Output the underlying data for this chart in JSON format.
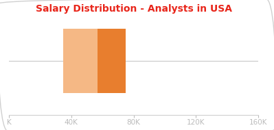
{
  "title": "Salary Distribution - Analysts in USA",
  "title_color": "#e8251a",
  "title_fontsize": 10,
  "title_fontweight": "bold",
  "xlim": [
    0,
    160000
  ],
  "xticks": [
    0,
    40000,
    80000,
    120000,
    160000
  ],
  "xticklabels": [
    "K",
    "40K",
    "80K",
    "120K",
    "160K"
  ],
  "q1": 35000,
  "median": 57000,
  "q3": 75000,
  "color_left": "#f5b885",
  "color_right": "#e87e2e",
  "whisker_color": "#cccccc",
  "background_color": "#ffffff",
  "border_color": "#d0d0d0",
  "tick_color": "#bbbbbb",
  "tick_label_color": "#aaaaaa",
  "figsize": [
    3.99,
    1.9
  ],
  "dpi": 100
}
